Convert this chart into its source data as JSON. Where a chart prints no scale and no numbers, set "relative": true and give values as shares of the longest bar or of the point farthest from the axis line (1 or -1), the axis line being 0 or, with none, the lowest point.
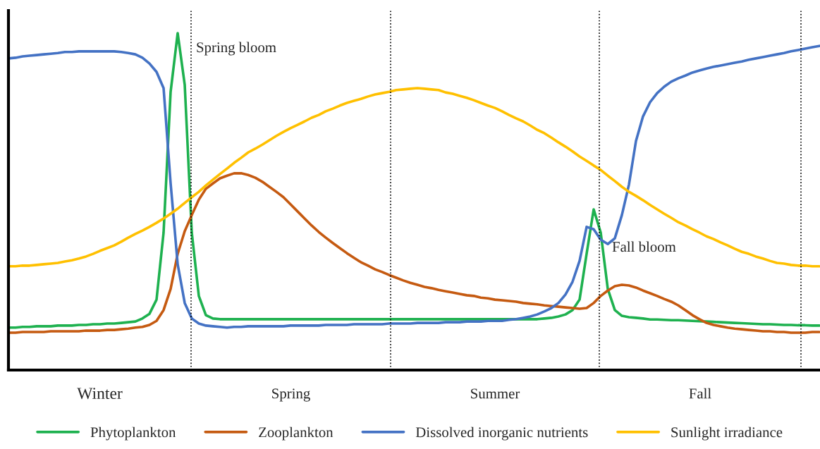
{
  "chart_data": {
    "type": "line",
    "relative": true,
    "legend": "bottom",
    "line_style": "solid",
    "categories": [
      null,
      null,
      null,
      null,
      null,
      null,
      null,
      null,
      null,
      null,
      null,
      null,
      null,
      null,
      null,
      null,
      null,
      null,
      null,
      null,
      null,
      null,
      null,
      null,
      null,
      null,
      null,
      null,
      null,
      null,
      null,
      null,
      null,
      null,
      null,
      null,
      null,
      null,
      null,
      null,
      null,
      null,
      null,
      null,
      null,
      null,
      null,
      null,
      null,
      null,
      null,
      null,
      null,
      null,
      null,
      null,
      null,
      null,
      null,
      null,
      null,
      null,
      null,
      null,
      null,
      null,
      null,
      null,
      null,
      null,
      null,
      null,
      null,
      null,
      null,
      null,
      null,
      null,
      null,
      null,
      null,
      null,
      null,
      null,
      null,
      null,
      null,
      null,
      null,
      null,
      null,
      null,
      null,
      null,
      null,
      null,
      null,
      null,
      null,
      null,
      null,
      null,
      null,
      null,
      null,
      null,
      null,
      null,
      null,
      null,
      null,
      null,
      null,
      null,
      null,
      null
    ],
    "series": [
      {
        "name": "Phytoplankton",
        "color": "#1eb14f",
        "values": [
          0.126,
          0.126,
          0.128,
          0.128,
          0.13,
          0.13,
          0.13,
          0.132,
          0.132,
          0.132,
          0.134,
          0.134,
          0.136,
          0.136,
          0.138,
          0.138,
          0.14,
          0.142,
          0.144,
          0.153,
          0.167,
          0.209,
          0.408,
          0.826,
          1.0,
          0.847,
          0.408,
          0.22,
          0.163,
          0.153,
          0.151,
          0.151,
          0.151,
          0.151,
          0.151,
          0.151,
          0.151,
          0.151,
          0.151,
          0.151,
          0.151,
          0.151,
          0.151,
          0.151,
          0.151,
          0.151,
          0.151,
          0.151,
          0.151,
          0.151,
          0.151,
          0.151,
          0.151,
          0.151,
          0.151,
          0.151,
          0.151,
          0.151,
          0.151,
          0.151,
          0.151,
          0.151,
          0.151,
          0.151,
          0.151,
          0.151,
          0.151,
          0.151,
          0.151,
          0.151,
          0.151,
          0.151,
          0.151,
          0.151,
          0.151,
          0.151,
          0.153,
          0.155,
          0.159,
          0.165,
          0.178,
          0.209,
          0.345,
          0.477,
          0.408,
          0.241,
          0.178,
          0.161,
          0.157,
          0.155,
          0.153,
          0.15,
          0.15,
          0.149,
          0.148,
          0.148,
          0.147,
          0.146,
          0.145,
          0.144,
          0.143,
          0.142,
          0.141,
          0.14,
          0.139,
          0.138,
          0.137,
          0.136,
          0.136,
          0.135,
          0.134,
          0.134,
          0.133,
          0.133,
          0.132,
          0.132
        ]
      },
      {
        "name": "Zooplankton",
        "color": "#c55a11",
        "values": [
          0.111,
          0.111,
          0.113,
          0.113,
          0.113,
          0.113,
          0.115,
          0.115,
          0.115,
          0.115,
          0.115,
          0.117,
          0.117,
          0.117,
          0.119,
          0.119,
          0.121,
          0.123,
          0.126,
          0.128,
          0.134,
          0.146,
          0.178,
          0.241,
          0.345,
          0.412,
          0.46,
          0.506,
          0.538,
          0.554,
          0.569,
          0.577,
          0.584,
          0.584,
          0.579,
          0.571,
          0.559,
          0.544,
          0.529,
          0.513,
          0.492,
          0.471,
          0.45,
          0.429,
          0.41,
          0.393,
          0.377,
          0.362,
          0.347,
          0.333,
          0.32,
          0.31,
          0.299,
          0.291,
          0.282,
          0.274,
          0.266,
          0.259,
          0.253,
          0.247,
          0.243,
          0.238,
          0.234,
          0.23,
          0.226,
          0.222,
          0.22,
          0.215,
          0.213,
          0.209,
          0.207,
          0.205,
          0.203,
          0.199,
          0.197,
          0.195,
          0.192,
          0.19,
          0.188,
          0.186,
          0.184,
          0.182,
          0.184,
          0.199,
          0.22,
          0.236,
          0.249,
          0.253,
          0.251,
          0.245,
          0.236,
          0.228,
          0.22,
          0.211,
          0.203,
          0.192,
          0.178,
          0.163,
          0.151,
          0.14,
          0.134,
          0.13,
          0.126,
          0.123,
          0.121,
          0.119,
          0.117,
          0.115,
          0.115,
          0.113,
          0.113,
          0.111,
          0.111,
          0.111,
          0.113,
          0.113
        ]
      },
      {
        "name": "Dissolved inorganic nutrients",
        "color": "#4472c4",
        "values": [
          0.925,
          0.927,
          0.931,
          0.933,
          0.935,
          0.937,
          0.939,
          0.941,
          0.944,
          0.944,
          0.946,
          0.946,
          0.946,
          0.946,
          0.946,
          0.946,
          0.944,
          0.941,
          0.937,
          0.927,
          0.91,
          0.885,
          0.837,
          0.554,
          0.314,
          0.199,
          0.153,
          0.138,
          0.132,
          0.13,
          0.128,
          0.126,
          0.128,
          0.128,
          0.13,
          0.13,
          0.13,
          0.13,
          0.13,
          0.13,
          0.132,
          0.132,
          0.132,
          0.132,
          0.132,
          0.134,
          0.134,
          0.134,
          0.134,
          0.136,
          0.136,
          0.136,
          0.136,
          0.136,
          0.138,
          0.138,
          0.138,
          0.138,
          0.14,
          0.14,
          0.14,
          0.14,
          0.142,
          0.142,
          0.142,
          0.144,
          0.144,
          0.144,
          0.146,
          0.146,
          0.146,
          0.149,
          0.151,
          0.155,
          0.159,
          0.165,
          0.174,
          0.184,
          0.199,
          0.224,
          0.262,
          0.324,
          0.425,
          0.418,
          0.387,
          0.374,
          0.391,
          0.46,
          0.55,
          0.68,
          0.753,
          0.795,
          0.822,
          0.841,
          0.856,
          0.866,
          0.874,
          0.883,
          0.889,
          0.895,
          0.9,
          0.904,
          0.908,
          0.912,
          0.916,
          0.921,
          0.925,
          0.929,
          0.933,
          0.937,
          0.941,
          0.946,
          0.95,
          0.954,
          0.958,
          0.962
        ]
      },
      {
        "name": "Sunlight irradiance",
        "color": "#ffc000",
        "values": [
          0.308,
          0.308,
          0.31,
          0.31,
          0.312,
          0.314,
          0.316,
          0.318,
          0.322,
          0.326,
          0.331,
          0.337,
          0.345,
          0.354,
          0.362,
          0.37,
          0.381,
          0.393,
          0.404,
          0.414,
          0.425,
          0.437,
          0.45,
          0.464,
          0.479,
          0.496,
          0.513,
          0.529,
          0.548,
          0.565,
          0.582,
          0.598,
          0.615,
          0.63,
          0.646,
          0.657,
          0.669,
          0.682,
          0.695,
          0.707,
          0.718,
          0.728,
          0.738,
          0.749,
          0.757,
          0.768,
          0.776,
          0.785,
          0.793,
          0.799,
          0.805,
          0.812,
          0.818,
          0.822,
          0.826,
          0.831,
          0.833,
          0.835,
          0.837,
          0.835,
          0.833,
          0.831,
          0.824,
          0.82,
          0.814,
          0.808,
          0.801,
          0.793,
          0.785,
          0.778,
          0.768,
          0.757,
          0.747,
          0.738,
          0.726,
          0.713,
          0.703,
          0.69,
          0.676,
          0.663,
          0.649,
          0.634,
          0.621,
          0.607,
          0.594,
          0.577,
          0.561,
          0.544,
          0.529,
          0.517,
          0.504,
          0.49,
          0.477,
          0.464,
          0.452,
          0.439,
          0.429,
          0.418,
          0.408,
          0.397,
          0.389,
          0.379,
          0.37,
          0.36,
          0.351,
          0.345,
          0.337,
          0.331,
          0.324,
          0.318,
          0.316,
          0.312,
          0.31,
          0.31,
          0.308,
          0.308
        ]
      }
    ],
    "annotations": [
      "Spring bloom",
      "Fall bloom",
      "Winter",
      "Spring",
      "Summer",
      "Fall"
    ]
  }
}
